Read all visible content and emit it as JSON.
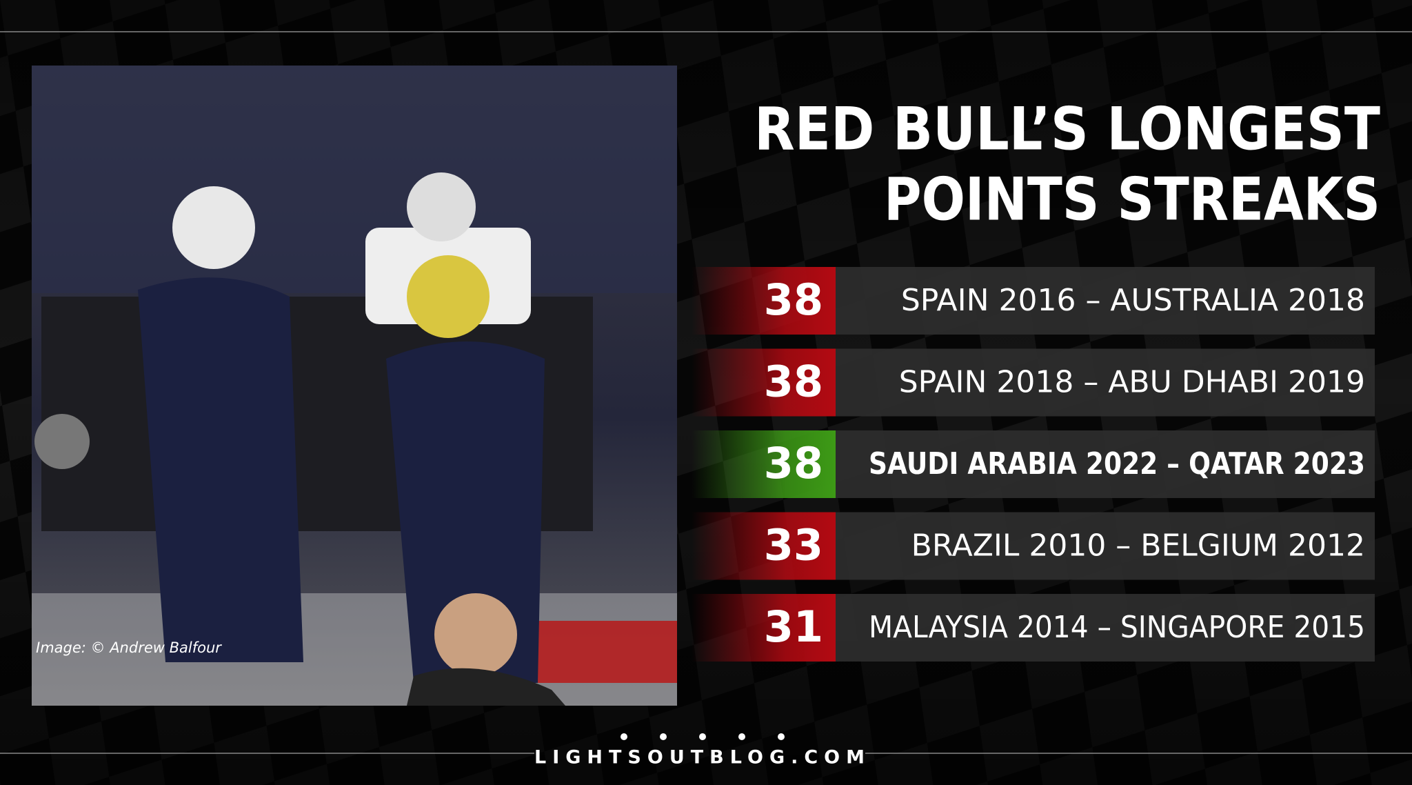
{
  "header": {
    "title_lines": [
      "RED BULL’S LONGEST",
      "POINTS STREAKS"
    ]
  },
  "streaks": [
    {
      "value": 38,
      "label": "SPAIN 2016 – AUSTRALIA 2018",
      "color": "#b30a12"
    },
    {
      "value": 38,
      "label": "SPAIN 2018 – ABU DHABI 2019",
      "color": "#b30a12"
    },
    {
      "value": 38,
      "label": "SAUDI ARABIA 2022 – QATAR 2023",
      "color": "#3d9a16"
    },
    {
      "value": 33,
      "label": "BRAZIL 2010 – BELGIUM 2012",
      "color": "#b30a12"
    },
    {
      "value": 31,
      "label": "MALAYSIA 2014 – SINGAPORE 2015",
      "color": "#b30a12"
    }
  ],
  "credit": "Image: © Andrew Balfour",
  "footer": "LIGHTSOUTBLOG.COM"
}
